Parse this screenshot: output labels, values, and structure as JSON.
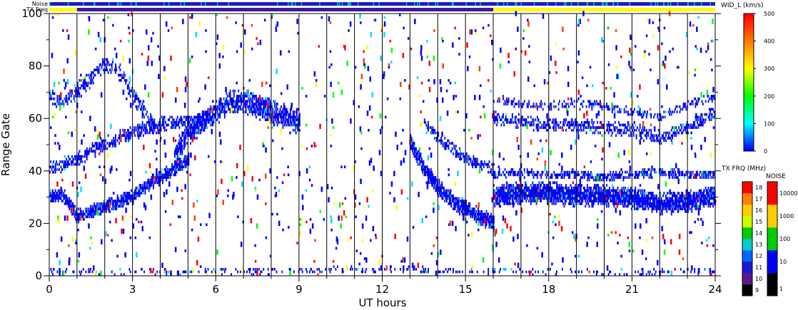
{
  "chart_data": {
    "type": "heatmap",
    "title": "",
    "xlabel": "UT hours",
    "ylabel": "Range Gate",
    "xlim": [
      0,
      24
    ],
    "ylim": [
      0,
      100
    ],
    "x_ticks": [
      0,
      3,
      6,
      9,
      12,
      15,
      18,
      21,
      24
    ],
    "x_ticks_labels": [
      "0",
      "3",
      "6",
      "9",
      "12",
      "15",
      "18",
      "21",
      "24"
    ],
    "y_ticks": [
      0,
      20,
      40,
      60,
      80,
      100
    ],
    "y_ticks_labels": [
      "0",
      "20",
      "40",
      "60",
      "80",
      "100"
    ],
    "grid": "vertical lines every 1 UT hour",
    "top_bars": {
      "noise_label": "Noise",
      "txfreq_label": "TX Freq",
      "txfreq_segments": [
        {
          "from": 0,
          "to": 1,
          "color": "#ffff00"
        },
        {
          "from": 1,
          "to": 16,
          "color": "#3a1a9a"
        },
        {
          "from": 16,
          "to": 24,
          "color": "#ffff00"
        }
      ],
      "noise_color": "#1a1acc"
    },
    "main_colorbar": {
      "title": "WID_L (km/s)",
      "range": [
        0,
        500
      ],
      "tick_labels": [
        "0",
        "100",
        "200",
        "300",
        "400",
        "500"
      ],
      "colors": [
        "#0000ff",
        "#00ffff",
        "#00ff00",
        "#ffff00",
        "#ff8000",
        "#ff0000"
      ]
    },
    "txfreq_colorbar": {
      "title": "TX FRQ (MHz)",
      "tick_labels": [
        "9",
        "10",
        "11",
        "12",
        "13",
        "14",
        "15",
        "16",
        "17",
        "18"
      ],
      "colors": [
        "#000000",
        "#5a1a8a",
        "#1a1acc",
        "#0066ff",
        "#00cccc",
        "#00cc00",
        "#ccff00",
        "#ffcc00",
        "#ff8000",
        "#ff0000"
      ]
    },
    "noise_colorbar": {
      "title": "NOISE",
      "tick_labels": [
        "1",
        "10",
        "100",
        "1000",
        "10000"
      ],
      "colors": [
        "#000000",
        "#0000ff",
        "#00cc00",
        "#ffcc00",
        "#ff0000"
      ]
    },
    "bands": [
      {
        "name": "",
        "x": [
          0,
          0.5,
          1,
          1.5,
          2,
          2.5,
          3,
          3.5,
          4,
          4.5,
          5
        ],
        "y": [
          30,
          30,
          22,
          24,
          26,
          28,
          30,
          34,
          37,
          40,
          44
        ],
        "thickness": 5,
        "density": 0.9
      },
      {
        "name": "",
        "x": [
          0,
          0.5,
          1,
          1.5,
          2,
          2.5,
          3,
          3.5,
          4,
          4.5,
          5,
          5.5
        ],
        "y": [
          40,
          42,
          44,
          47,
          50,
          52,
          54,
          56,
          57,
          58,
          58,
          58
        ],
        "thickness": 5,
        "density": 0.55
      },
      {
        "name": "",
        "x": [
          0,
          0.5,
          1,
          1.5,
          2,
          2.5,
          3,
          3.5,
          4
        ],
        "y": [
          68,
          66,
          70,
          75,
          80,
          78,
          68,
          60,
          55
        ],
        "thickness": 6,
        "density": 0.45
      },
      {
        "name": "",
        "x": [
          4.5,
          5,
          5.5,
          6,
          6.5,
          7,
          7.5,
          8,
          8.5,
          9
        ],
        "y": [
          46,
          54,
          58,
          62,
          66,
          66,
          64,
          62,
          60,
          58
        ],
        "thickness": 9,
        "density": 0.75
      },
      {
        "name": "",
        "x": [
          13,
          13.5,
          14,
          14.5,
          15,
          15.5,
          16
        ],
        "y": [
          50,
          40,
          33,
          28,
          25,
          22,
          20
        ],
        "thickness": 6,
        "density": 0.9
      },
      {
        "name": "",
        "x": [
          13.5,
          14,
          14.5,
          15,
          15.5,
          16
        ],
        "y": [
          58,
          52,
          48,
          44,
          42,
          40
        ],
        "thickness": 4,
        "density": 0.55
      },
      {
        "name": "",
        "x": [
          16,
          17,
          18,
          19,
          20,
          21,
          22,
          23,
          24
        ],
        "y": [
          30,
          31,
          31,
          30,
          30,
          29,
          27,
          28,
          30
        ],
        "thickness": 8,
        "density": 0.92
      },
      {
        "name": "",
        "x": [
          16,
          17,
          18,
          19,
          20,
          21,
          22,
          23,
          24
        ],
        "y": [
          38,
          39,
          38,
          38,
          37,
          38,
          39,
          38,
          38
        ],
        "thickness": 3,
        "density": 0.6
      },
      {
        "name": "",
        "x": [
          16,
          17,
          18,
          19,
          20,
          21,
          22,
          23,
          24
        ],
        "y": [
          60,
          58,
          57,
          57,
          56,
          55,
          52,
          56,
          62
        ],
        "thickness": 5,
        "density": 0.5
      },
      {
        "name": "",
        "x": [
          16,
          17,
          18,
          19,
          20,
          21,
          22,
          23,
          24
        ],
        "y": [
          67,
          65,
          64,
          65,
          64,
          62,
          60,
          65,
          68
        ],
        "thickness": 3,
        "density": 0.35
      },
      {
        "name": "",
        "x": [
          0,
          6,
          12,
          18,
          24
        ],
        "y": [
          1,
          1,
          2,
          1,
          1
        ],
        "thickness": 2,
        "density": 0.2
      }
    ]
  }
}
